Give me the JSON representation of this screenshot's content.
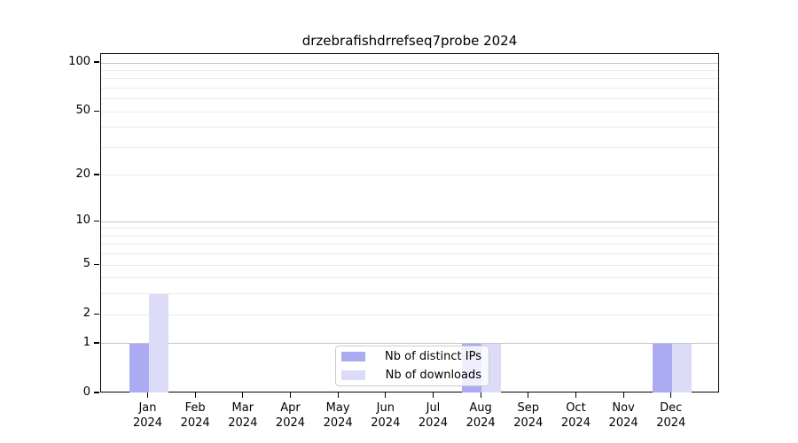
{
  "chart_data": {
    "type": "bar",
    "title": "drzebrafishdrrefseq7probe 2024",
    "categories": [
      "Jan",
      "Feb",
      "Mar",
      "Apr",
      "May",
      "Jun",
      "Jul",
      "Aug",
      "Sep",
      "Oct",
      "Nov",
      "Dec"
    ],
    "x_tick_year": "2024",
    "series": [
      {
        "name": "Nb of distinct IPs",
        "color": "#ababf2",
        "values": [
          1,
          0,
          0,
          0,
          0,
          0,
          0,
          1,
          0,
          0,
          0,
          1
        ]
      },
      {
        "name": "Nb of downloads",
        "color": "#dcdcf8",
        "values": [
          3,
          0,
          0,
          0,
          0,
          0,
          0,
          1,
          0,
          0,
          0,
          1
        ]
      }
    ],
    "y_scale": "log10(1+y)",
    "y_ticks": [
      0,
      1,
      2,
      5,
      10,
      20,
      50,
      100
    ],
    "y_major_gridlines": [
      1,
      10,
      100
    ],
    "y_minor_gridlines": [
      2,
      3,
      4,
      5,
      6,
      7,
      8,
      9,
      20,
      30,
      40,
      50,
      60,
      70,
      80,
      90
    ],
    "ylim": [
      0,
      115
    ],
    "grid": "horizontal",
    "legend_position": "bottom-center"
  },
  "colors": {
    "grid_major": "#c6c6c6",
    "grid_minor": "#ebebeb",
    "axis": "#000000",
    "legend_border": "#cccccc"
  }
}
